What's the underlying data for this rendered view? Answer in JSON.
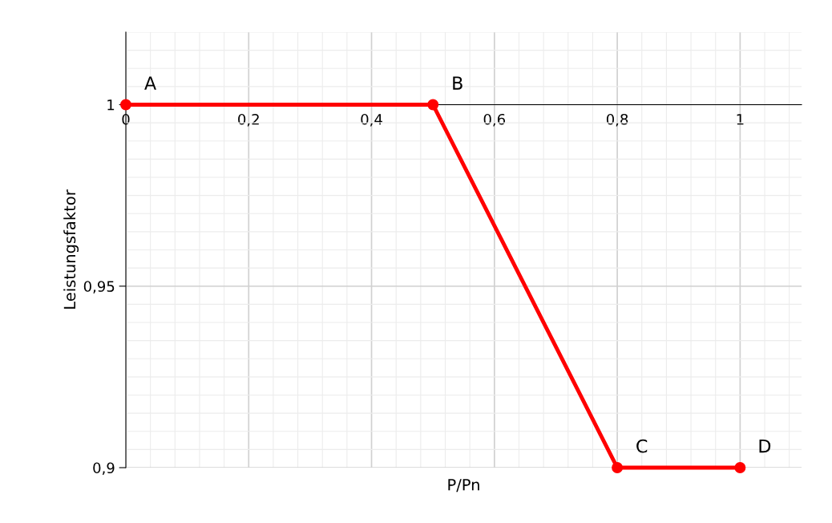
{
  "chart_data": {
    "type": "line",
    "xlabel": "P/Pn",
    "ylabel": "Leistungsfaktor",
    "x": [
      0,
      0.5,
      0.8,
      1
    ],
    "series": [
      {
        "color": "#ff0000",
        "values": [
          1,
          1,
          0.9,
          0.9
        ]
      }
    ],
    "xlim": [
      0,
      1.1
    ],
    "ylim": [
      0.9,
      1.02
    ],
    "xticks": [
      0,
      {
        "value": 0.2,
        "label": "0,2"
      },
      {
        "value": 0.4,
        "label": "0,4"
      },
      {
        "value": 0.6,
        "label": "0,6"
      },
      {
        "value": 0.8,
        "label": "0,8"
      },
      1
    ],
    "yticks": [
      {
        "value": 0.9,
        "label": "0,9"
      },
      {
        "value": 0.95,
        "label": "0,95"
      },
      1
    ],
    "annotations": [
      {
        "text": "A",
        "x": 0,
        "y": 1
      },
      {
        "text": "B",
        "x": 0.5,
        "y": 1
      },
      {
        "text": "C",
        "x": 0.8,
        "y": 0.9
      },
      {
        "text": "D",
        "x": 1,
        "y": 0.9
      }
    ],
    "marker": "circle",
    "line_style": "solid",
    "grid": true
  }
}
